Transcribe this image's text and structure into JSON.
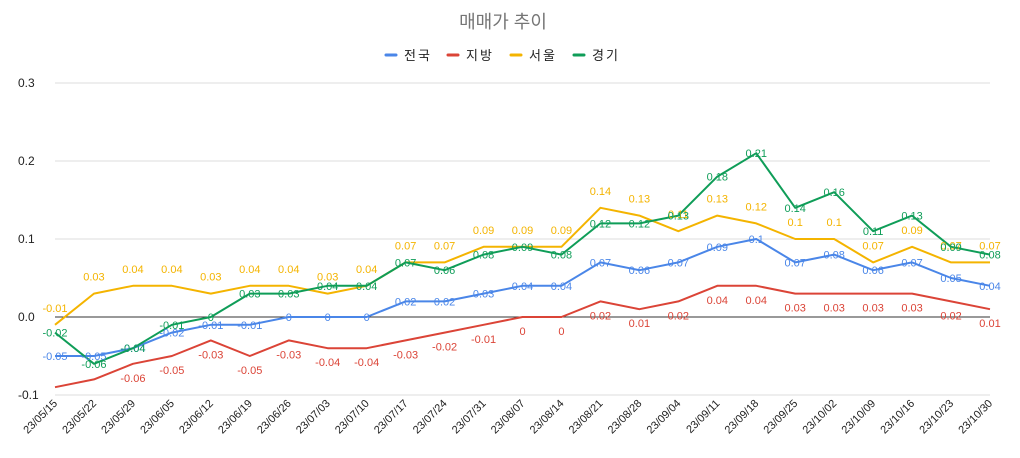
{
  "chart_data": {
    "type": "line",
    "title": "매매가 추이",
    "categories": [
      "23/05/15",
      "23/05/22",
      "23/05/29",
      "23/06/05",
      "23/06/12",
      "23/06/19",
      "23/06/26",
      "23/07/03",
      "23/07/10",
      "23/07/17",
      "23/07/24",
      "23/07/31",
      "23/08/07",
      "23/08/14",
      "23/08/21",
      "23/08/28",
      "23/09/04",
      "23/09/11",
      "23/09/18",
      "23/09/25",
      "23/10/02",
      "23/10/09",
      "23/10/16",
      "23/10/23",
      "23/10/30"
    ],
    "ylim": [
      -0.1,
      0.3
    ],
    "yticks": [
      -0.1,
      0.0,
      0.1,
      0.2,
      0.3
    ],
    "ytick_labels": [
      "-0.1",
      "0.0",
      "0.1",
      "0.2",
      "0.3"
    ],
    "legend_position": "top",
    "series": [
      {
        "name": "전국",
        "color": "#4a86e8",
        "values": [
          -0.05,
          -0.05,
          -0.04,
          -0.02,
          -0.01,
          -0.01,
          0,
          0,
          0,
          0.02,
          0.02,
          0.03,
          0.04,
          0.04,
          0.07,
          0.06,
          0.07,
          0.09,
          0.1,
          0.07,
          0.08,
          0.06,
          0.07,
          0.05,
          0.04
        ],
        "labels": [
          "-0.05",
          "-0.05",
          "-0.04",
          "-0.02",
          "-0.01",
          "-0.01",
          "0",
          "0",
          "0",
          "0.02",
          "0.02",
          "0.03",
          "0.04",
          "0.04",
          "0.07",
          "0.06",
          "0.07",
          "0.09",
          "0.1",
          "0.07",
          "0.08",
          "0.06",
          "0.07",
          "0.05",
          "0.04"
        ]
      },
      {
        "name": "지방",
        "color": "#db4437",
        "values": [
          -0.09,
          -0.08,
          -0.06,
          -0.05,
          -0.03,
          -0.05,
          -0.03,
          -0.04,
          -0.04,
          -0.03,
          -0.02,
          -0.01,
          0,
          0,
          0.02,
          0.01,
          0.02,
          0.04,
          0.04,
          0.03,
          0.03,
          0.03,
          0.03,
          0.02,
          0.01
        ],
        "labels": [
          "",
          "",
          "-0.06",
          "-0.05",
          "-0.03",
          "-0.05",
          "-0.03",
          "-0.04",
          "-0.04",
          "-0.03",
          "-0.02",
          "-0.01",
          "0",
          "0",
          "0.02",
          "0.01",
          "0.02",
          "0.04",
          "0.04",
          "0.03",
          "0.03",
          "0.03",
          "0.03",
          "0.02",
          "0.01"
        ]
      },
      {
        "name": "서울",
        "color": "#f4b400",
        "values": [
          -0.01,
          0.03,
          0.04,
          0.04,
          0.03,
          0.04,
          0.04,
          0.03,
          0.04,
          0.07,
          0.07,
          0.09,
          0.09,
          0.09,
          0.14,
          0.13,
          0.11,
          0.13,
          0.12,
          0.1,
          0.1,
          0.07,
          0.09,
          0.07,
          0.07
        ],
        "labels": [
          "-0.01",
          "0.03",
          "0.04",
          "0.04",
          "0.03",
          "0.04",
          "0.04",
          "0.03",
          "0.04",
          "0.07",
          "0.07",
          "0.09",
          "0.09",
          "0.09",
          "0.14",
          "0.13",
          "0.11",
          "0.13",
          "0.12",
          "0.1",
          "0.1",
          "0.07",
          "0.09",
          "0.07",
          "0.07"
        ]
      },
      {
        "name": "경기",
        "color": "#0f9d58",
        "values": [
          -0.02,
          -0.06,
          -0.04,
          -0.01,
          0,
          0.03,
          0.03,
          0.04,
          0.04,
          0.07,
          0.06,
          0.08,
          0.09,
          0.08,
          0.12,
          0.12,
          0.13,
          0.18,
          0.21,
          0.14,
          0.16,
          0.11,
          0.13,
          0.09,
          0.08
        ],
        "labels": [
          "-0.02",
          "-0.06",
          "-0.04",
          "-0.01",
          "0",
          "0.03",
          "0.03",
          "0.04",
          "0.04",
          "0.07",
          "0.06",
          "0.08",
          "0.09",
          "0.08",
          "0.12",
          "0.12",
          "0.13",
          "0.18",
          "0.21",
          "0.14",
          "0.16",
          "0.11",
          "0.13",
          "0.09",
          "0.08"
        ]
      }
    ]
  }
}
